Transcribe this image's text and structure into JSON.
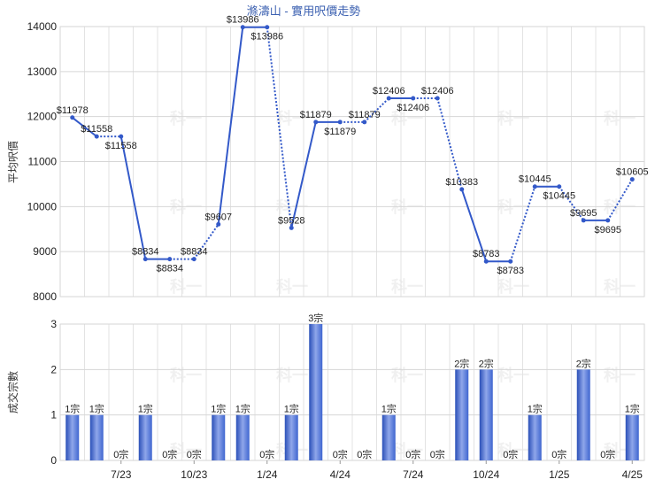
{
  "chart_data": [
    {
      "type": "line",
      "title": "滌濤山 - 實用呎價走勢",
      "ylabel": "平均呎價",
      "xlabel": "",
      "ylim": [
        8000,
        14000
      ],
      "yticks": [
        8000,
        9000,
        10000,
        11000,
        12000,
        13000,
        14000
      ],
      "grid": true,
      "line_color": "#3359c9",
      "label_prefix": "$",
      "values": [
        11978,
        11558,
        11558,
        8834,
        8834,
        8834,
        9607,
        13986,
        13986,
        9528,
        11879,
        11879,
        11879,
        12406,
        12406,
        12406,
        10383,
        8783,
        8783,
        10445,
        10445,
        9695,
        9695,
        10605
      ],
      "segments_dotted": [
        false,
        true,
        false,
        false,
        true,
        true,
        false,
        false,
        true,
        false,
        false,
        true,
        true,
        false,
        true,
        true,
        false,
        false,
        true,
        false,
        true,
        false,
        true,
        false
      ],
      "labels_below": [
        false,
        false,
        true,
        false,
        true,
        false,
        false,
        false,
        true,
        false,
        false,
        true,
        false,
        false,
        true,
        false,
        false,
        false,
        true,
        false,
        true,
        false,
        true,
        false
      ]
    },
    {
      "type": "bar",
      "ylabel": "成交宗數",
      "xlabel": "",
      "ylim": [
        0,
        3
      ],
      "yticks": [
        0,
        1,
        2,
        3
      ],
      "grid": true,
      "bar_color": "#3f66d0",
      "value_suffix": "宗",
      "values": [
        1,
        1,
        0,
        1,
        0,
        0,
        1,
        1,
        0,
        1,
        3,
        0,
        0,
        1,
        0,
        0,
        2,
        2,
        0,
        1,
        0,
        2,
        0,
        1
      ],
      "x_tick_labels": [
        "7/23",
        "10/23",
        "1/24",
        "4/24",
        "7/24",
        "10/24",
        "1/25",
        "4/25"
      ],
      "x_tick_months": [
        2,
        5,
        8,
        11,
        14,
        17,
        20,
        23
      ]
    }
  ],
  "watermark": "科一"
}
